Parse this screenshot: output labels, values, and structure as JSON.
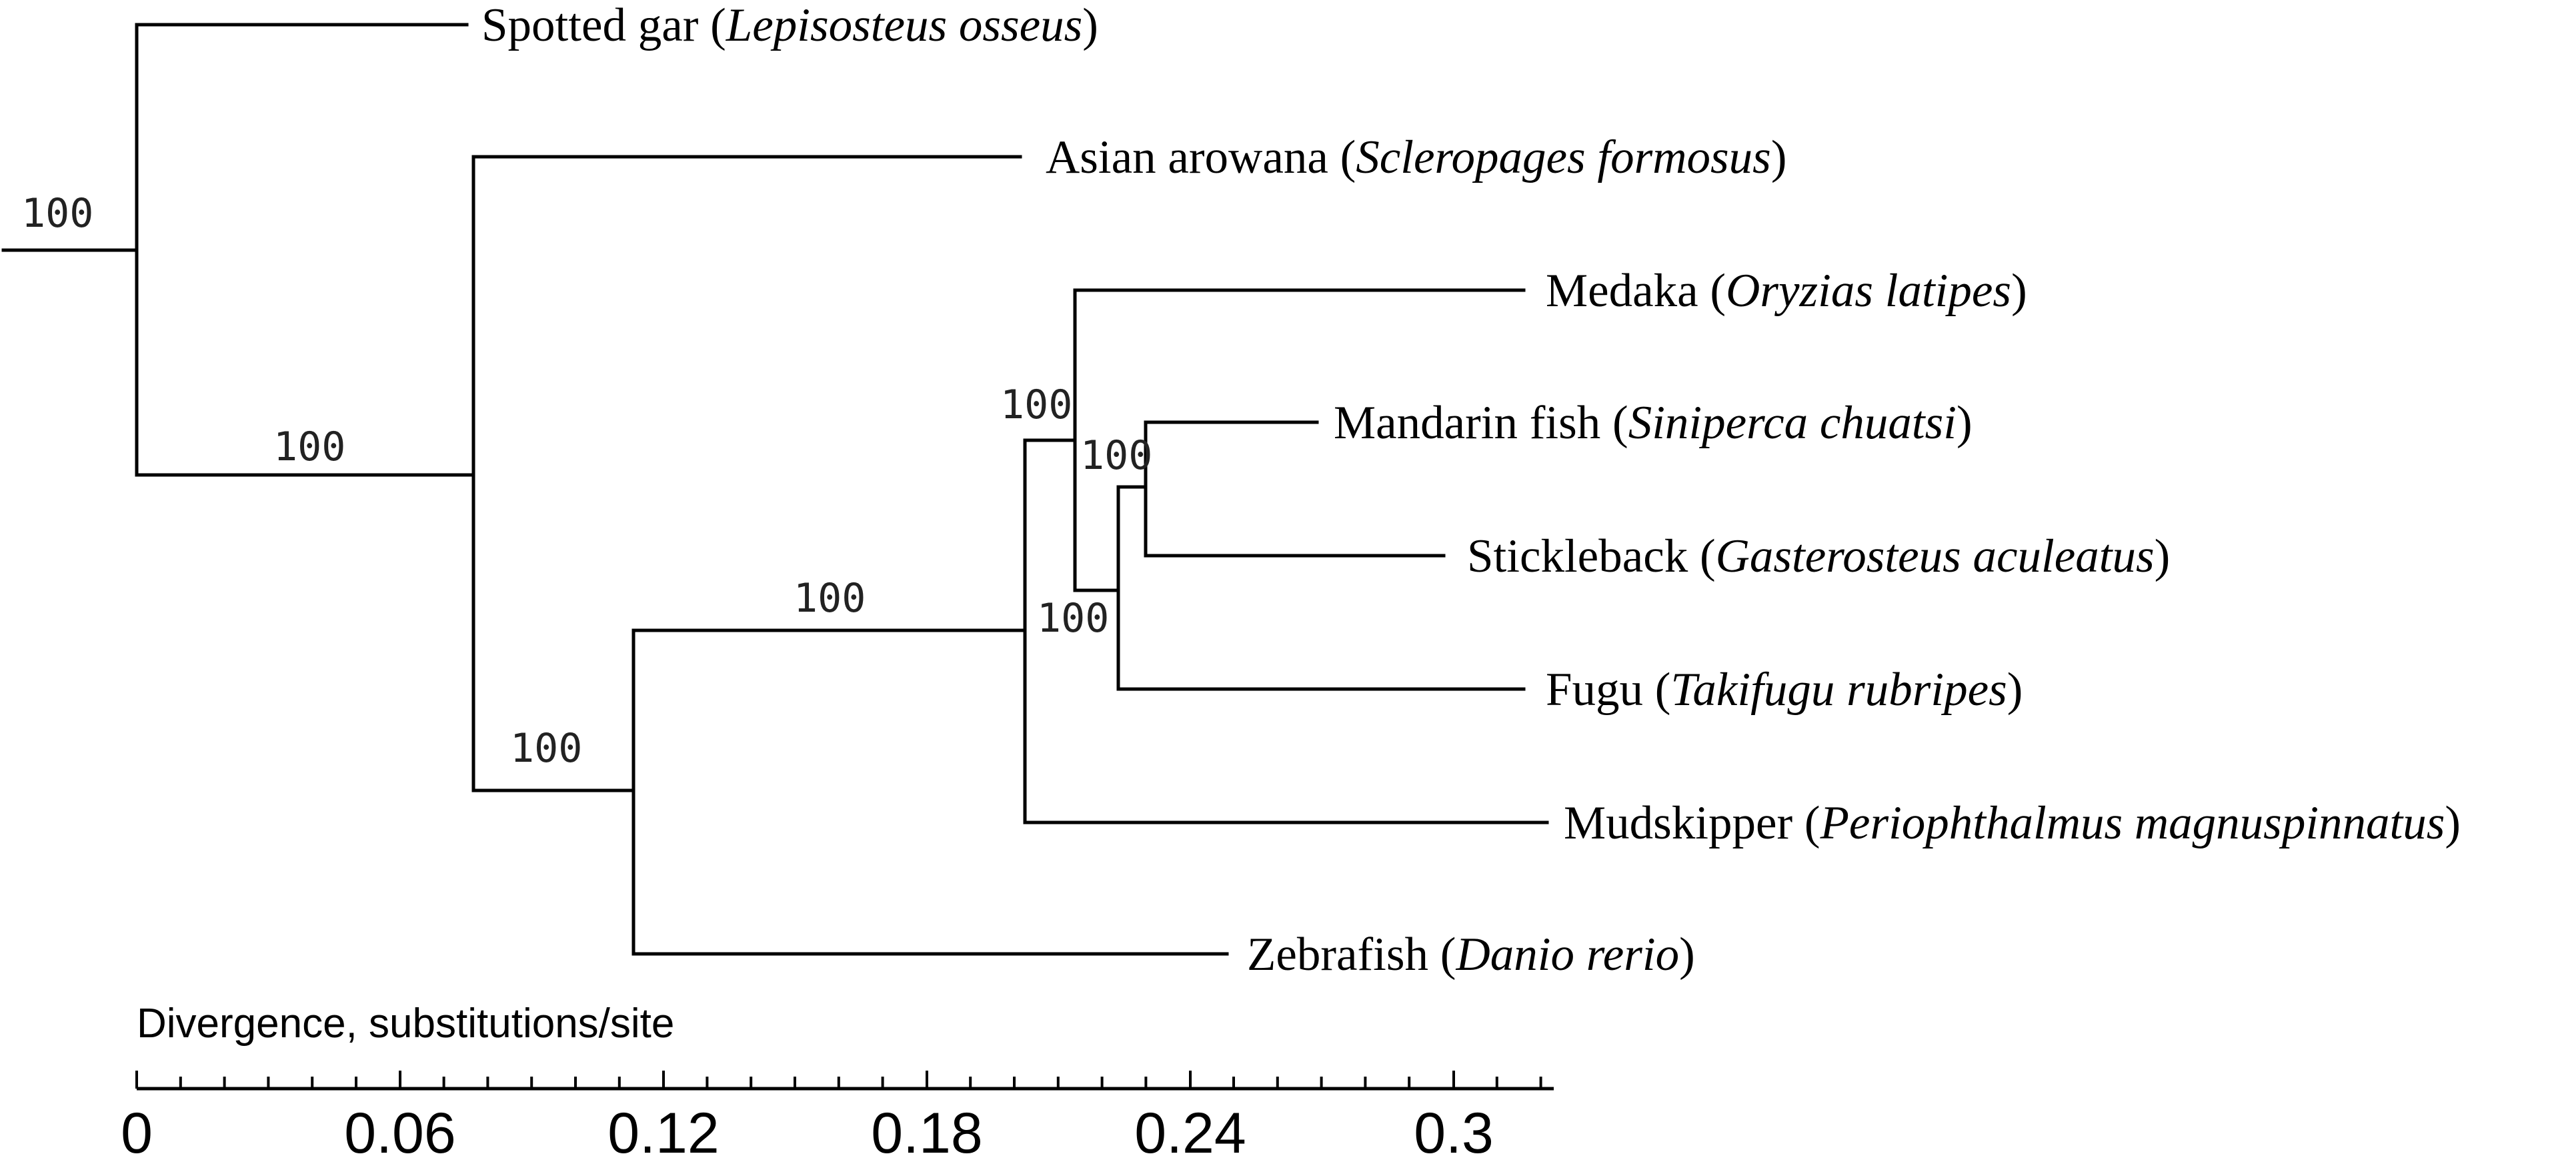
{
  "tree": {
    "taxa": [
      {
        "id": "gar",
        "common": "Spotted gar",
        "scientific": "Lepisosteus osseus"
      },
      {
        "id": "arowana",
        "common": "Asian arowana",
        "scientific": "Scleropages formosus"
      },
      {
        "id": "medaka",
        "common": "Medaka",
        "scientific": "Oryzias latipes"
      },
      {
        "id": "mandarin",
        "common": "Mandarin fish",
        "scientific": "Siniperca chuatsi"
      },
      {
        "id": "stickleback",
        "common": "Stickleback",
        "scientific": "Gasterosteus aculeatus"
      },
      {
        "id": "fugu",
        "common": "Fugu",
        "scientific": "Takifugu rubripes"
      },
      {
        "id": "mudskipper",
        "common": "Mudskipper",
        "scientific": "Periophthalmus magnuspinnatus"
      },
      {
        "id": "zebrafish",
        "common": "Zebrafish",
        "scientific": "Danio rerio"
      }
    ],
    "support_values": [
      "100",
      "100",
      "100",
      "100",
      "100",
      "100",
      "100"
    ]
  },
  "scale_bar": {
    "title": "Divergence, substitutions/site",
    "major_ticks": [
      "0",
      "0.06",
      "0.12",
      "0.18",
      "0.24",
      "0.3"
    ]
  }
}
